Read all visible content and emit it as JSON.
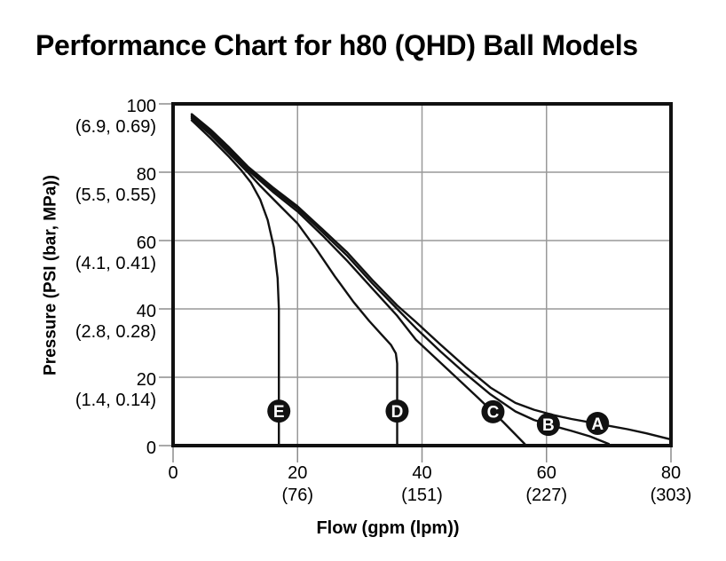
{
  "page": {
    "background": "#ffffff"
  },
  "chart_data": {
    "type": "line",
    "title": "Performance Chart for h80 (QHD) Ball Models",
    "xlabel": "Flow (gpm (lpm))",
    "ylabel": "Pressure (PSI (bar, MPa))",
    "xlim": [
      0,
      80
    ],
    "ylim": [
      0,
      100
    ],
    "grid": true,
    "legend_position": "none - curves labeled with circled letters on plot",
    "x_ticks": [
      {
        "v": 0,
        "label": "0",
        "sub": ""
      },
      {
        "v": 20,
        "label": "20",
        "sub": "(76)"
      },
      {
        "v": 40,
        "label": "40",
        "sub": "(151)"
      },
      {
        "v": 60,
        "label": "60",
        "sub": "(227)"
      },
      {
        "v": 80,
        "label": "80",
        "sub": "(303)"
      }
    ],
    "y_ticks": [
      {
        "v": 0,
        "label": "0",
        "sub": ""
      },
      {
        "v": 20,
        "label": "20",
        "sub": "(1.4, 0.14)"
      },
      {
        "v": 40,
        "label": "40",
        "sub": "(2.8, 0.28)"
      },
      {
        "v": 60,
        "label": "60",
        "sub": "(4.1, 0.41)"
      },
      {
        "v": 80,
        "label": "80",
        "sub": "(5.5, 0.55)"
      },
      {
        "v": 100,
        "label": "100",
        "sub": "(6.9, 0.69)"
      }
    ],
    "colors": {
      "line": "#111111",
      "grid": "#999999",
      "tick": "#8c8c8c",
      "marker_fill": "#111111",
      "marker_text": "#ffffff"
    },
    "series": [
      {
        "name": "A",
        "marker": {
          "x": 68.2,
          "y": 6.5
        },
        "points": [
          [
            3,
            97
          ],
          [
            6,
            92.5
          ],
          [
            9,
            87.3
          ],
          [
            12,
            81.7
          ],
          [
            16,
            75.6
          ],
          [
            20,
            70
          ],
          [
            24,
            63.3
          ],
          [
            28,
            56.5
          ],
          [
            32,
            48.5
          ],
          [
            36,
            41
          ],
          [
            39,
            36.2
          ],
          [
            43,
            29.5
          ],
          [
            47,
            23
          ],
          [
            51,
            17
          ],
          [
            55,
            12.5
          ],
          [
            58,
            10.5
          ],
          [
            61,
            9
          ],
          [
            64,
            7.8
          ],
          [
            67,
            6.8
          ],
          [
            70,
            5.8
          ],
          [
            73,
            4.8
          ],
          [
            76,
            3.6
          ],
          [
            80,
            1.8
          ]
        ]
      },
      {
        "name": "B",
        "marker": {
          "x": 60.3,
          "y": 6.2
        },
        "points": [
          [
            3,
            96.6
          ],
          [
            6,
            92
          ],
          [
            9,
            86.8
          ],
          [
            12,
            81.2
          ],
          [
            16,
            75
          ],
          [
            20,
            69.3
          ],
          [
            24,
            62.5
          ],
          [
            28,
            55.5
          ],
          [
            32,
            47.5
          ],
          [
            36,
            40
          ],
          [
            39,
            34.4
          ],
          [
            43,
            27.5
          ],
          [
            47,
            21
          ],
          [
            51,
            15
          ],
          [
            55,
            10
          ],
          [
            58,
            7.5
          ],
          [
            61,
            5.8
          ],
          [
            64,
            4.3
          ],
          [
            67,
            2.7
          ],
          [
            70,
            0.5
          ]
        ]
      },
      {
        "name": "C",
        "marker": {
          "x": 51.4,
          "y": 9.9
        },
        "points": [
          [
            3,
            96.2
          ],
          [
            6,
            91.5
          ],
          [
            9,
            86.3
          ],
          [
            12,
            80.7
          ],
          [
            16,
            74.3
          ],
          [
            20,
            68.5
          ],
          [
            24,
            61.5
          ],
          [
            28,
            54
          ],
          [
            32,
            46
          ],
          [
            36,
            38
          ],
          [
            39,
            31
          ],
          [
            44,
            22.5
          ],
          [
            49,
            14
          ],
          [
            53,
            7
          ],
          [
            56.5,
            0.5
          ]
        ]
      },
      {
        "name": "D",
        "marker": {
          "x": 36,
          "y": 10.1
        },
        "points": [
          [
            3,
            95.8
          ],
          [
            6,
            91
          ],
          [
            9,
            85.5
          ],
          [
            12,
            80
          ],
          [
            14,
            76
          ],
          [
            17,
            70.5
          ],
          [
            20,
            65
          ],
          [
            23,
            57.5
          ],
          [
            26,
            49.5
          ],
          [
            29,
            42
          ],
          [
            31.5,
            36.5
          ],
          [
            33.5,
            32.5
          ],
          [
            35,
            29.5
          ],
          [
            35.8,
            27
          ],
          [
            36,
            24
          ],
          [
            36,
            0
          ]
        ]
      },
      {
        "name": "E",
        "marker": {
          "x": 17,
          "y": 10.1
        },
        "points": [
          [
            3,
            95.2
          ],
          [
            6,
            90
          ],
          [
            9,
            84.5
          ],
          [
            11,
            80.5
          ],
          [
            12.5,
            77
          ],
          [
            14,
            72
          ],
          [
            15.2,
            66
          ],
          [
            16.2,
            58
          ],
          [
            16.8,
            49
          ],
          [
            17,
            40
          ],
          [
            17,
            0
          ]
        ]
      }
    ]
  }
}
